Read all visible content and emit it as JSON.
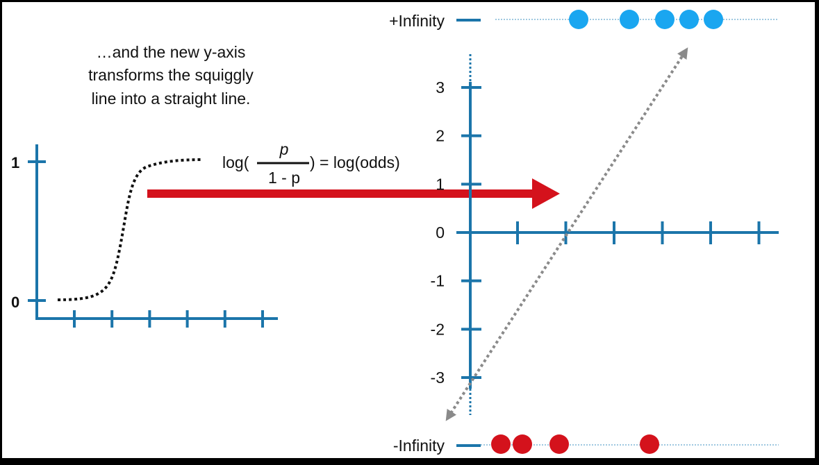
{
  "caption": {
    "lines": [
      "…and the new y-axis",
      "transforms the squiggly",
      "line into a straight line."
    ]
  },
  "left_plot": {
    "y_labels": [
      {
        "text": "1",
        "value": 1
      },
      {
        "text": "0",
        "value": 0
      }
    ],
    "x_tick_count": 6
  },
  "formula": {
    "prefix": "log(",
    "numerator": "p",
    "denominator": "1 - p",
    "suffix": ") = log(odds)"
  },
  "right_plot": {
    "y_ticks": [
      {
        "text": "3",
        "value": 3
      },
      {
        "text": "2",
        "value": 2
      },
      {
        "text": "1",
        "value": 1
      },
      {
        "text": "0",
        "value": 0
      },
      {
        "text": "-1",
        "value": -1
      },
      {
        "text": "-2",
        "value": -2
      },
      {
        "text": "-3",
        "value": -3
      }
    ],
    "x_tick_count": 6,
    "pos_inf_label": "+Infinity",
    "neg_inf_label": "-Infinity",
    "pos_inf_points": 5,
    "neg_inf_points": 4
  },
  "colors": {
    "background": "#ffffff",
    "frame": "#000000",
    "axis": "#1b75aa",
    "curve": "#111111",
    "arrow": "#d4121c",
    "pos_point": "#1aa6f0",
    "neg_point": "#d4121c",
    "fit_line": "#8a8a8a",
    "inf_line": "#7fb6d6",
    "text": "#111111"
  }
}
